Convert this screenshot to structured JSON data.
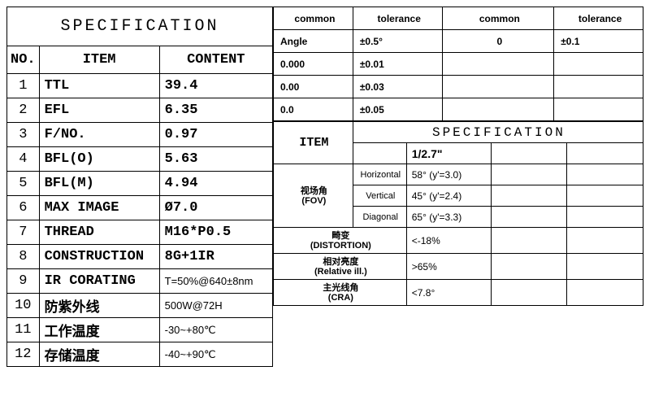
{
  "left": {
    "title": "SPECIFICATION",
    "headers": {
      "no": "NO.",
      "item": "ITEM",
      "content": "CONTENT"
    },
    "rows": [
      {
        "no": "1",
        "item": "TTL",
        "content": "39.4"
      },
      {
        "no": "2",
        "item": "EFL",
        "content": "6.35"
      },
      {
        "no": "3",
        "item": "F/NO.",
        "content": "0.97"
      },
      {
        "no": "4",
        "item": "BFL(O)",
        "content": "5.63"
      },
      {
        "no": "5",
        "item": "BFL(M)",
        "content": "4.94"
      },
      {
        "no": "6",
        "item": "MAX IMAGE",
        "content": "Ø7.0"
      },
      {
        "no": "7",
        "item": "THREAD",
        "content": "M16*P0.5"
      },
      {
        "no": "8",
        "item": "CONSTRUCTION",
        "content": "8G+1IR"
      },
      {
        "no": "9",
        "item": "IR CORATING",
        "content": "T=50%@640±8nm",
        "small": true
      },
      {
        "no": "10",
        "item": "防紫外线",
        "content": "500W@72H",
        "cn": true,
        "small": true
      },
      {
        "no": "11",
        "item": "工作温度",
        "content": "-30~+80℃",
        "cn": true,
        "small": true
      },
      {
        "no": "12",
        "item": "存储温度",
        "content": "-40~+90℃",
        "cn": true,
        "small": true
      }
    ]
  },
  "tol": {
    "headers": [
      "common",
      "tolerance",
      "common",
      "tolerance"
    ],
    "rows": [
      [
        "Angle",
        "±0.5°",
        "0",
        "±0.1"
      ],
      [
        "0.000",
        "±0.01",
        "",
        ""
      ],
      [
        "0.00",
        "±0.03",
        "",
        ""
      ],
      [
        "0.0",
        "±0.05",
        "",
        ""
      ]
    ]
  },
  "spec2": {
    "itemhdr": "ITEM",
    "spechdr": "SPECIFICATION",
    "sensor": "1/2.7\"",
    "fov": {
      "label_cn": "视场角",
      "label_en": "(FOV)",
      "rows": [
        {
          "sub": "Horizontal",
          "val": "58° (y'=3.0)"
        },
        {
          "sub": "Vertical",
          "val": "45° (y'=2.4)"
        },
        {
          "sub": "Diagonal",
          "val": "65° (y'=3.3)"
        }
      ]
    },
    "distortion": {
      "cn": "畸变",
      "en": "(DISTORTION)",
      "val": "<-18%"
    },
    "rel_ill": {
      "cn": "相对亮度",
      "en": "(Relative ill.)",
      "val": ">65%"
    },
    "cra": {
      "cn": "主光线角",
      "en": "(CRA)",
      "val": "<7.8°"
    }
  },
  "colors": {
    "border": "#000000",
    "bg": "#ffffff",
    "text": "#000000"
  }
}
